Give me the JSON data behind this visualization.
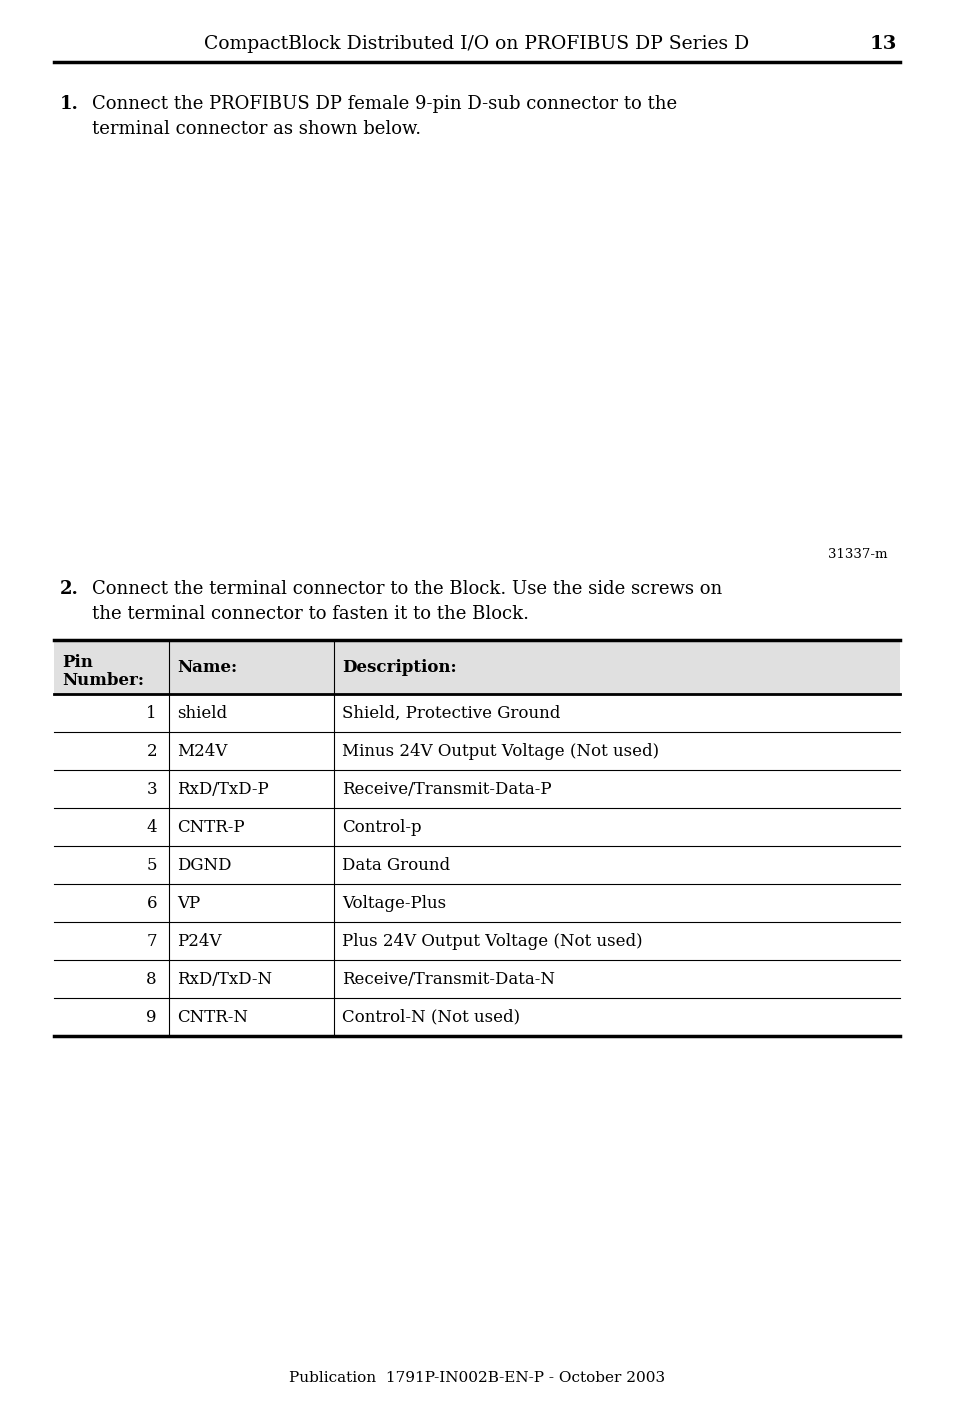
{
  "header_text": "CompactBlock Distributed I/O on PROFIBUS DP Series D",
  "header_page": "13",
  "item1_line1": "Connect the PROFIBUS DP female 9-pin D-sub connector to the",
  "item1_line2": "terminal connector as shown below.",
  "diagram_label": "31337-m",
  "item2_line1": "Connect the terminal connector to the Block. Use the side screws on",
  "item2_line2": "the terminal connector to fasten it to the Block.",
  "table_headers": [
    "Pin\nNumber:",
    "Name:",
    "Description:"
  ],
  "table_data": [
    [
      "1",
      "shield",
      "Shield, Protective Ground"
    ],
    [
      "2",
      "M24V",
      "Minus 24V Output Voltage (Not used)"
    ],
    [
      "3",
      "RxD/TxD-P",
      "Receive/Transmit-Data-P"
    ],
    [
      "4",
      "CNTR-P",
      "Control-p"
    ],
    [
      "5",
      "DGND",
      "Data Ground"
    ],
    [
      "6",
      "VP",
      "Voltage-Plus"
    ],
    [
      "7",
      "P24V",
      "Plus 24V Output Voltage (Not used)"
    ],
    [
      "8",
      "RxD/TxD-N",
      "Receive/Transmit-Data-N"
    ],
    [
      "9",
      "CNTR-N",
      "Control-N (Not used)"
    ]
  ],
  "footer_text": "Publication  1791P-IN002B-EN-P - October 2003",
  "bg_color": "#ffffff",
  "text_color": "#000000",
  "table_header_bg": "#e0e0e0"
}
